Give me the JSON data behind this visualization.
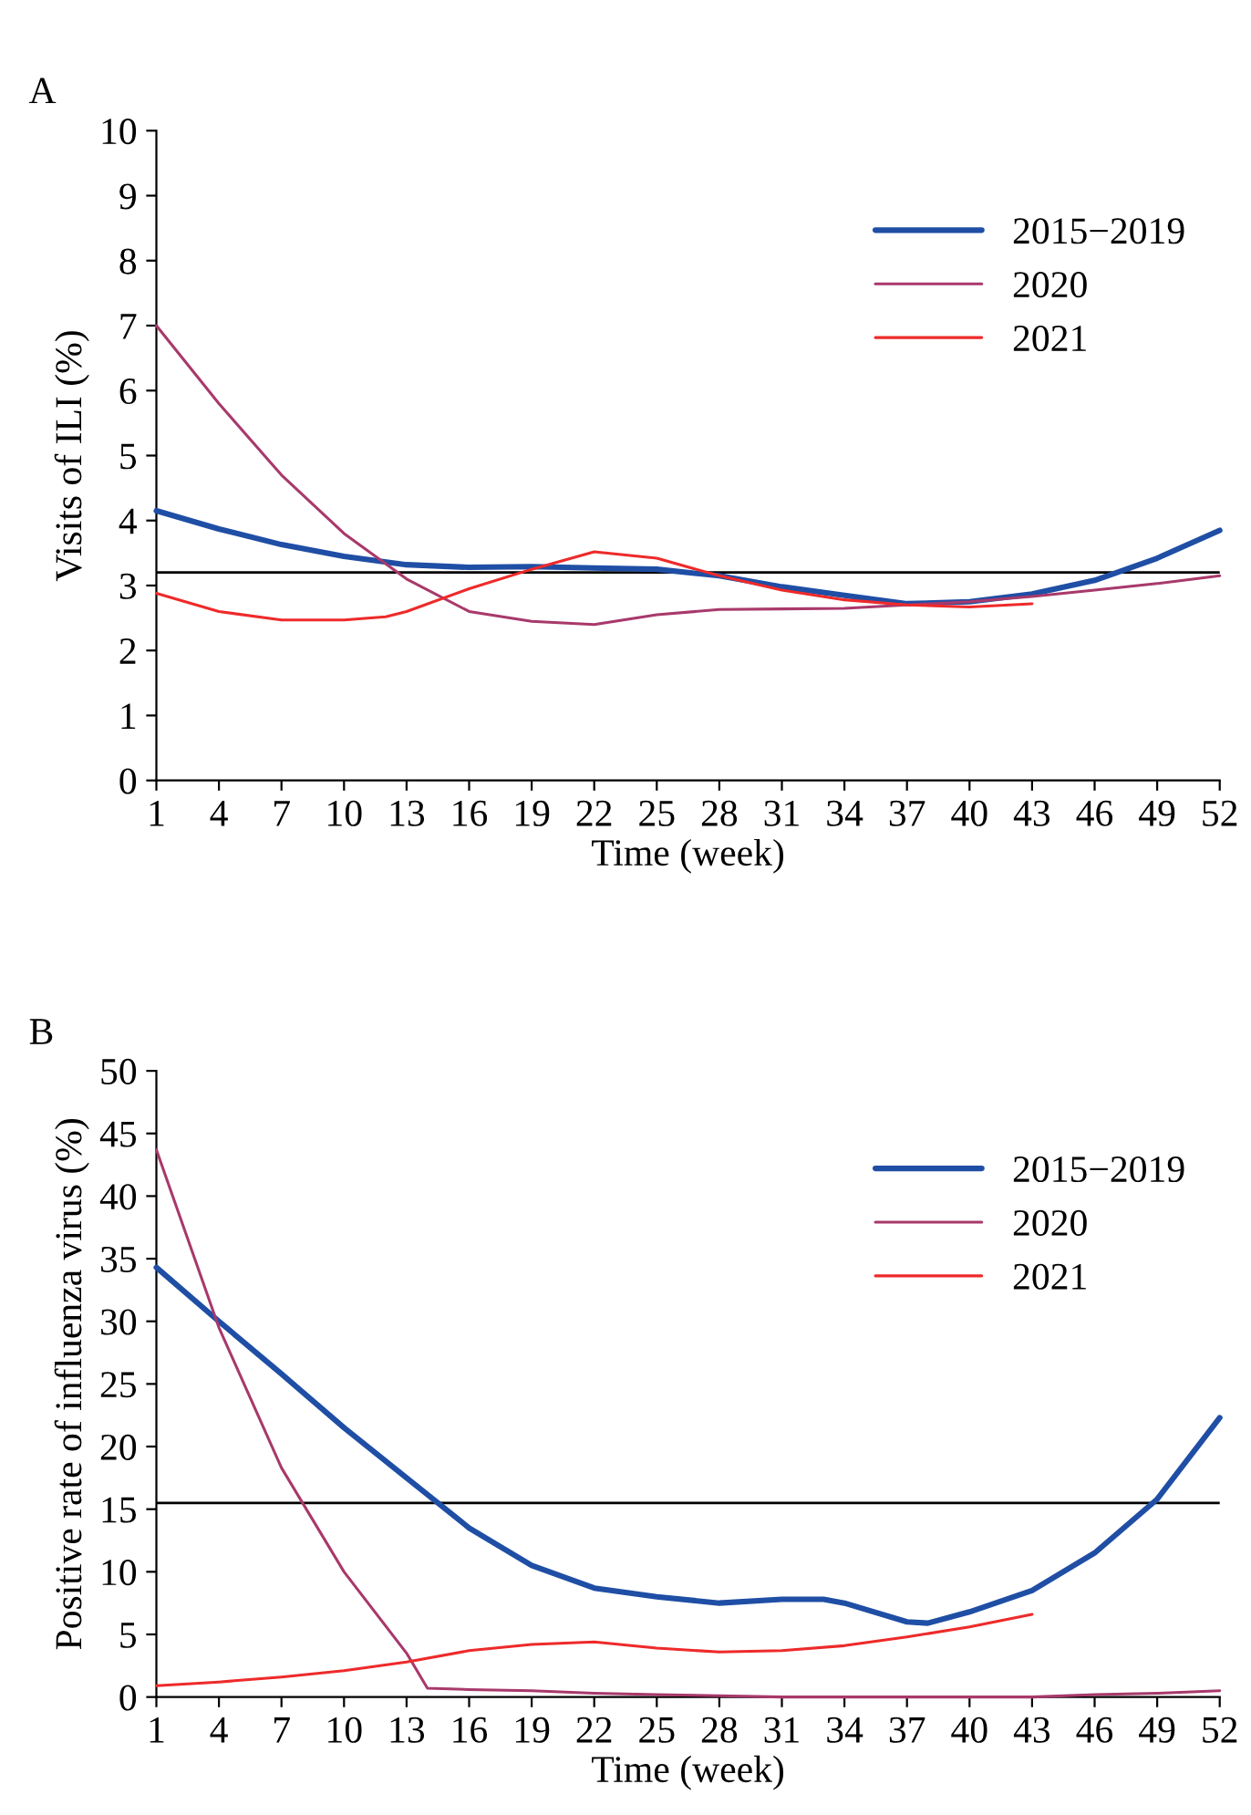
{
  "chart_data": [
    {
      "type": "line",
      "title": "A",
      "xlabel": "Time (week)",
      "ylabel": "Visits of ILI (%)",
      "xlim": [
        1,
        52
      ],
      "xticks": [
        1,
        4,
        7,
        10,
        13,
        16,
        19,
        22,
        25,
        28,
        31,
        34,
        37,
        40,
        43,
        46,
        49,
        52
      ],
      "ylim": [
        0,
        10
      ],
      "yticks": [
        0,
        1,
        2,
        3,
        4,
        5,
        6,
        7,
        8,
        9,
        10
      ],
      "grid": false,
      "legend": "top right",
      "marker": "none",
      "line_style": "solid",
      "ref_lines": [
        {
          "axis": "y",
          "value": 3.2,
          "color": "#000000"
        }
      ],
      "series": [
        {
          "name": "2015−2019",
          "color": "#1f4ea5",
          "x": [
            1,
            4,
            7,
            10,
            13,
            16,
            19,
            22,
            25,
            28,
            31,
            34,
            37,
            40,
            43,
            46,
            49,
            52
          ],
          "values": [
            4.15,
            3.87,
            3.63,
            3.45,
            3.32,
            3.28,
            3.29,
            3.27,
            3.25,
            3.15,
            2.98,
            2.85,
            2.72,
            2.75,
            2.87,
            3.08,
            3.42,
            3.85
          ]
        },
        {
          "name": "2020",
          "color": "#a8396b",
          "x": [
            1,
            4,
            7,
            10,
            13,
            16,
            19,
            22,
            25,
            28,
            31,
            34,
            37,
            40,
            43,
            46,
            49,
            52
          ],
          "values": [
            7.0,
            5.8,
            4.7,
            3.8,
            3.1,
            2.6,
            2.45,
            2.4,
            2.55,
            2.63,
            2.64,
            2.65,
            2.7,
            2.75,
            2.83,
            2.93,
            3.03,
            3.15
          ]
        },
        {
          "name": "2021",
          "color": "#ee2a2a",
          "x": [
            1,
            4,
            7,
            10,
            12,
            13,
            16,
            19,
            22,
            25,
            28,
            31,
            34,
            37,
            40,
            43
          ],
          "values": [
            2.88,
            2.6,
            2.47,
            2.47,
            2.52,
            2.6,
            2.95,
            3.25,
            3.52,
            3.42,
            3.15,
            2.93,
            2.78,
            2.7,
            2.67,
            2.72
          ]
        }
      ]
    },
    {
      "type": "line",
      "title": "B",
      "xlabel": "Time (week)",
      "ylabel": "Positive rate of influenza virus (%)",
      "xlim": [
        1,
        52
      ],
      "xticks": [
        1,
        4,
        7,
        10,
        13,
        16,
        19,
        22,
        25,
        28,
        31,
        34,
        37,
        40,
        43,
        46,
        49,
        52
      ],
      "ylim": [
        0,
        50
      ],
      "yticks": [
        0,
        5,
        10,
        15,
        20,
        25,
        30,
        35,
        40,
        45,
        50
      ],
      "grid": false,
      "legend": "top right",
      "marker": "none",
      "line_style": "solid",
      "ref_lines": [
        {
          "axis": "y",
          "value": 15.5,
          "color": "#000000"
        }
      ],
      "series": [
        {
          "name": "2015−2019",
          "color": "#1f4ea5",
          "x": [
            1,
            4,
            7,
            10,
            13,
            16,
            19,
            22,
            25,
            28,
            31,
            33,
            34,
            37,
            38,
            40,
            43,
            46,
            49,
            52
          ],
          "values": [
            34.3,
            30,
            25.8,
            21.5,
            17.5,
            13.5,
            10.5,
            8.7,
            8.0,
            7.5,
            7.8,
            7.8,
            7.5,
            6.0,
            5.9,
            6.8,
            8.5,
            11.5,
            15.8,
            22.3
          ]
        },
        {
          "name": "2020",
          "color": "#a8396b",
          "x": [
            1,
            4,
            7,
            10,
            13,
            14,
            16,
            19,
            22,
            25,
            28,
            31,
            34,
            37,
            40,
            43,
            46,
            49,
            52
          ],
          "values": [
            43.7,
            29.5,
            18.3,
            10.0,
            3.5,
            0.7,
            0.6,
            0.5,
            0.3,
            0.2,
            0.1,
            0.0,
            0.0,
            0.0,
            0.0,
            0.0,
            0.2,
            0.3,
            0.5
          ]
        },
        {
          "name": "2021",
          "color": "#ee2a2a",
          "x": [
            1,
            4,
            7,
            10,
            13,
            16,
            19,
            22,
            25,
            28,
            31,
            34,
            37,
            40,
            43
          ],
          "values": [
            0.9,
            1.2,
            1.6,
            2.1,
            2.8,
            3.7,
            4.2,
            4.4,
            3.9,
            3.6,
            3.7,
            4.1,
            4.8,
            5.6,
            6.6
          ]
        }
      ]
    }
  ]
}
